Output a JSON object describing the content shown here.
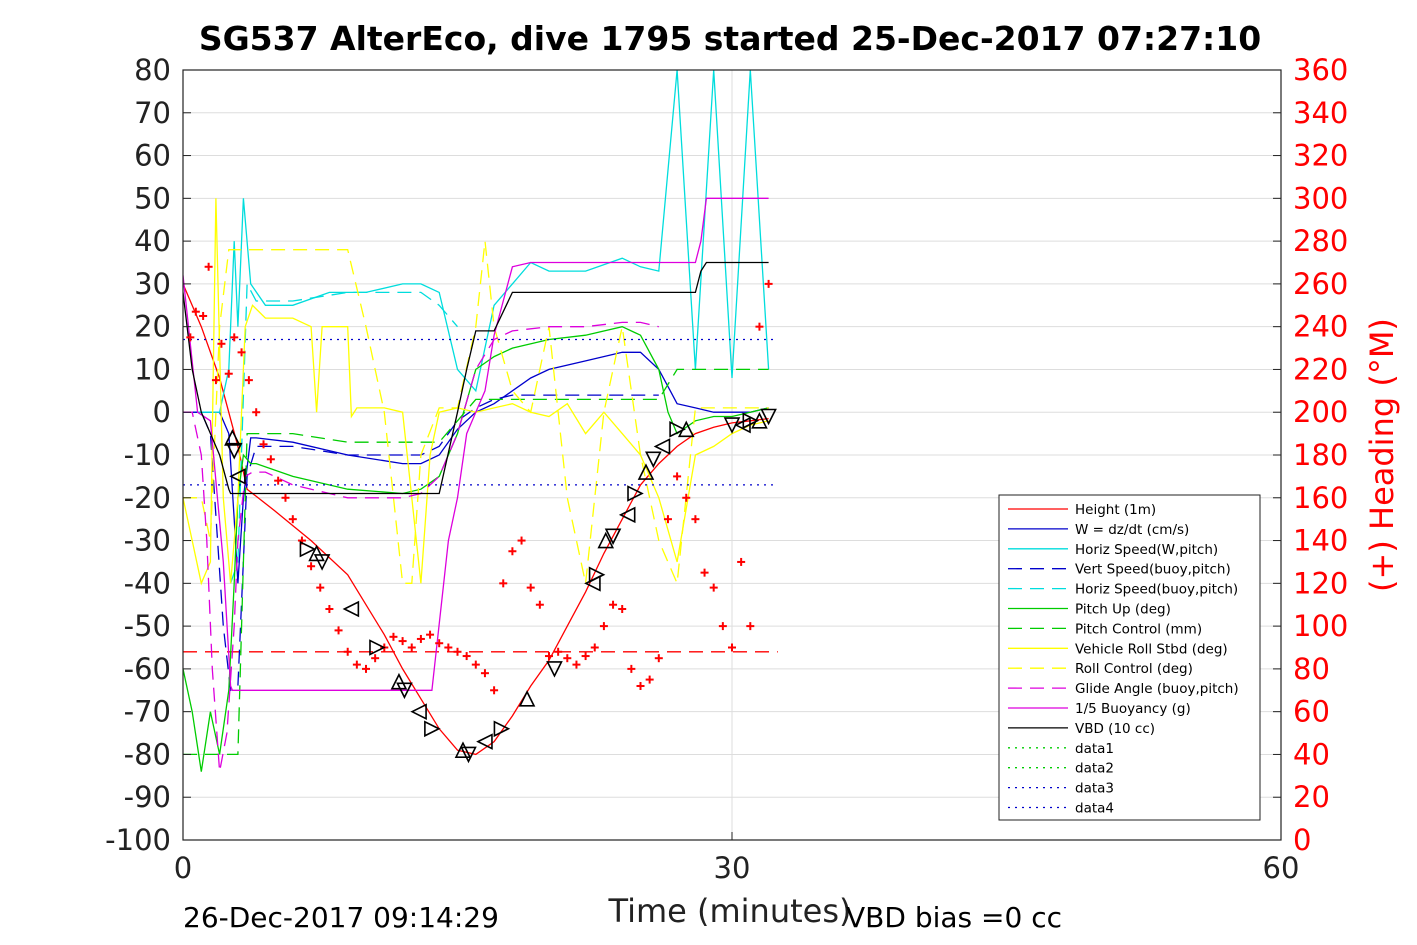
{
  "chart_data": {
    "type": "line",
    "title": "SG537 AlterEco, dive 1795 started 25-Dec-2017 07:27:10",
    "xlabel": "Time (minutes)",
    "ylabel": "",
    "y2label": "(+) Heading (°M)",
    "xlim": [
      0,
      60
    ],
    "ylim": [
      -100,
      80
    ],
    "y2lim": [
      0,
      360
    ],
    "x_ticks": [
      "0",
      "30",
      "60"
    ],
    "x_tick_values": [
      0,
      30,
      60
    ],
    "y_ticks": [
      "80",
      "70",
      "60",
      "50",
      "40",
      "30",
      "20",
      "10",
      "0",
      "-10",
      "-20",
      "-30",
      "-40",
      "-50",
      "-60",
      "-70",
      "-80",
      "-90",
      "-100"
    ],
    "y_tick_values": [
      80,
      70,
      60,
      50,
      40,
      30,
      20,
      10,
      0,
      -10,
      -20,
      -30,
      -40,
      -50,
      -60,
      -70,
      -80,
      -90,
      -100
    ],
    "y2_ticks": [
      "360",
      "340",
      "320",
      "300",
      "280",
      "260",
      "240",
      "220",
      "200",
      "180",
      "160",
      "140",
      "120",
      "100",
      "80",
      "60",
      "40",
      "20",
      "0"
    ],
    "y2_tick_values": [
      360,
      340,
      320,
      300,
      280,
      260,
      240,
      220,
      200,
      180,
      160,
      140,
      120,
      100,
      80,
      60,
      40,
      20,
      0
    ],
    "grid": true,
    "legend_position": "right",
    "footer_left": "26-Dec-2017 09:14:29",
    "footer_right": "VBD bias =0 cc",
    "series": [
      {
        "name": "Height (1m)",
        "color": "#ff0000",
        "dash": "solid",
        "x": [
          0,
          1,
          2,
          3,
          3.5,
          5,
          7,
          9,
          11,
          12,
          13,
          14,
          15,
          16,
          17,
          18,
          19,
          20,
          21,
          22,
          23,
          24,
          25,
          26,
          27,
          28,
          29,
          30,
          31,
          32
        ],
        "y": [
          30,
          20,
          8,
          -8,
          -18,
          -23,
          -30,
          -38,
          -52,
          -60,
          -67,
          -74,
          -79,
          -80,
          -77,
          -71,
          -64,
          -58,
          -50,
          -42,
          -33,
          -25,
          -17,
          -12,
          -8,
          -5,
          -3.5,
          -2.5,
          -2,
          -1.5
        ]
      },
      {
        "name": "W = dz/dt (cm/s)",
        "color": "#0000cc",
        "dash": "solid",
        "x": [
          0,
          1,
          2,
          2.5,
          2.8,
          3,
          3.3,
          3.7,
          4,
          6,
          9,
          12,
          13,
          14,
          15,
          16,
          17,
          18,
          19,
          20,
          22,
          24,
          25,
          26,
          26.5,
          27,
          28,
          29,
          30,
          31,
          32
        ],
        "y": [
          0,
          0,
          0,
          -5,
          -25,
          -40,
          -20,
          -6,
          -6,
          -7,
          -10,
          -12,
          -12,
          -10,
          -4,
          0,
          2,
          5,
          8,
          10,
          12,
          14,
          14,
          10,
          6,
          2,
          1,
          0,
          0,
          0,
          1
        ]
      },
      {
        "name": "Horiz Speed(W,pitch)",
        "color": "#00dddd",
        "dash": "solid",
        "x": [
          0,
          1,
          2,
          2.5,
          2.8,
          3,
          3.3,
          3.7,
          4.5,
          6,
          8,
          10,
          12,
          13,
          14,
          15,
          16,
          17,
          18,
          19,
          20,
          22,
          24,
          25,
          26,
          27,
          28,
          29,
          30,
          31,
          32
        ],
        "y": [
          0,
          0,
          0,
          10,
          40,
          20,
          50,
          30,
          25,
          25,
          28,
          28,
          30,
          30,
          28,
          10,
          5,
          25,
          30,
          35,
          33,
          33,
          36,
          34,
          33,
          80,
          10,
          80,
          8,
          80,
          10
        ]
      },
      {
        "name": "Vert Speed(buoy,pitch)",
        "color": "#0000cc",
        "dash": "longdash",
        "x": [
          0,
          1,
          1.5,
          2.2,
          2.6,
          3,
          3.5,
          4,
          6,
          9,
          12,
          13,
          14,
          15,
          16,
          17,
          18,
          20,
          22,
          24,
          25,
          26
        ],
        "y": [
          0,
          0,
          -5,
          -50,
          -65,
          -64,
          -15,
          -8,
          -8,
          -10,
          -10,
          -10,
          -8,
          -2,
          1,
          3,
          4,
          4,
          4,
          4,
          4,
          4
        ]
      },
      {
        "name": "Horiz Speed(buoy,pitch)",
        "color": "#00dddd",
        "dash": "longdash",
        "x": [
          2.6,
          3,
          3.5,
          4,
          6,
          9,
          12,
          13,
          14,
          15
        ],
        "y": [
          -40,
          -35,
          30,
          26,
          26,
          28,
          28,
          28,
          25,
          20
        ]
      },
      {
        "name": "Pitch Up (deg)",
        "color": "#00cc00",
        "dash": "solid",
        "x": [
          0,
          0.5,
          1,
          1.5,
          2,
          2.5,
          2.8,
          3,
          3.3,
          3.7,
          4,
          6,
          9,
          12,
          13,
          14,
          15,
          16,
          17,
          18,
          20,
          22,
          24,
          25,
          26,
          26.5,
          27,
          28,
          29,
          30,
          31,
          32
        ],
        "y": [
          -60,
          -70,
          -84,
          -70,
          -80,
          -65,
          -40,
          -20,
          -10,
          -12,
          -12,
          -15,
          -18,
          -19,
          -18,
          -15,
          -5,
          10,
          13,
          15,
          17,
          18,
          20,
          18,
          10,
          0,
          -5,
          -2,
          -1,
          -1,
          0,
          1
        ]
      },
      {
        "name": "Pitch Control (mm)",
        "color": "#00cc00",
        "dash": "longdash",
        "x": [
          0,
          1,
          2,
          2.5,
          3,
          3.5,
          4,
          6,
          9,
          12,
          13,
          14,
          15,
          16,
          17,
          18,
          20,
          22,
          24,
          25,
          26,
          27,
          28,
          29,
          30,
          31,
          32
        ],
        "y": [
          -80,
          -80,
          -80,
          -80,
          -80,
          -5,
          -5,
          -5,
          -7,
          -7,
          -7,
          -7,
          -2,
          3,
          3,
          3,
          3,
          3,
          3,
          3,
          3,
          10,
          10,
          10,
          10,
          10,
          10
        ]
      },
      {
        "name": "Vehicle Roll Stbd (deg)",
        "color": "#ffff00",
        "dash": "solid",
        "x": [
          0,
          0.5,
          1,
          1.5,
          1.8,
          2.2,
          2.6,
          3,
          3.4,
          3.8,
          4.5,
          6,
          7,
          7.3,
          7.6,
          8,
          9,
          9.2,
          9.5,
          10,
          11,
          12,
          12.5,
          13,
          13.5,
          14,
          15,
          16,
          17,
          18,
          19,
          20,
          21,
          22,
          23,
          24,
          25,
          26,
          27,
          28,
          29,
          30,
          31,
          32
        ],
        "y": [
          -20,
          -30,
          -40,
          -35,
          50,
          -20,
          -40,
          -20,
          20,
          25,
          22,
          22,
          20,
          0,
          20,
          20,
          20,
          -1,
          1,
          1,
          1,
          0,
          -20,
          -40,
          -10,
          0,
          1,
          0,
          1,
          2,
          0,
          -1,
          2,
          -5,
          0,
          -5,
          -10,
          -20,
          -35,
          -10,
          -8,
          -5,
          -3,
          -2
        ]
      },
      {
        "name": "Roll Control (deg)",
        "color": "#ffff00",
        "dash": "longdash",
        "x": [
          0,
          1,
          1.5,
          2,
          2.5,
          3,
          3.5,
          4.5,
          6,
          8,
          9,
          10,
          11,
          11.5,
          12,
          12.5,
          13,
          14,
          15,
          16,
          16.5,
          17,
          18,
          19,
          20,
          21,
          22,
          23,
          24,
          25,
          26,
          27,
          28,
          29,
          30,
          31,
          32
        ],
        "y": [
          -20,
          -20,
          -30,
          20,
          38,
          38,
          38,
          38,
          38,
          38,
          38,
          20,
          0,
          -20,
          -40,
          -40,
          -10,
          1,
          1,
          20,
          40,
          20,
          5,
          0,
          20,
          -20,
          -40,
          0,
          20,
          -10,
          -30,
          -40,
          1,
          1,
          1,
          1,
          1
        ]
      },
      {
        "name": "Glide Angle (buoy,pitch)",
        "color": "#dd00dd",
        "dash": "longdash",
        "x": [
          0,
          0.5,
          1,
          1.3,
          1.6,
          2,
          2.4,
          2.8,
          3,
          3.4,
          3.8,
          4.5,
          6,
          9,
          12,
          13,
          14,
          15,
          16,
          17,
          18,
          20,
          22,
          24,
          25,
          26
        ],
        "y": [
          0,
          0,
          -10,
          -30,
          -60,
          -84,
          -75,
          -50,
          -30,
          -15,
          -14,
          -14,
          -17,
          -20,
          -20,
          -19,
          -15,
          -5,
          10,
          17,
          19,
          20,
          20,
          21,
          21,
          20
        ]
      },
      {
        "name": "1/5 Buoyancy (g)",
        "color": "#dd00dd",
        "dash": "solid",
        "x": [
          0,
          0.8,
          1.5,
          2.2,
          2.6,
          2.7,
          6,
          10,
          13,
          13.6,
          14.5,
          15,
          15.5,
          16,
          16.5,
          17,
          18,
          19,
          20,
          22,
          25,
          27,
          28,
          28.3,
          28.6,
          30,
          31,
          32
        ],
        "y": [
          32,
          0,
          -2,
          -35,
          -64,
          -65,
          -65,
          -65,
          -65,
          -65,
          -30,
          -20,
          -5,
          0,
          5,
          18,
          34,
          35,
          35,
          35,
          35,
          35,
          35,
          40,
          50,
          50,
          50,
          50
        ]
      },
      {
        "name": "VBD (10 cc)",
        "color": "#000000",
        "dash": "solid",
        "x": [
          0,
          0.5,
          1,
          2,
          2.5,
          2.6,
          5,
          8,
          11,
          13,
          14,
          15,
          15.5,
          16,
          17,
          18,
          19,
          20,
          22,
          25,
          27,
          28,
          28.3,
          28.6,
          30,
          31,
          32
        ],
        "y": [
          28,
          10,
          0,
          -10,
          -18,
          -19,
          -19,
          -19,
          -19,
          -19,
          -19,
          0,
          10,
          19,
          19,
          28,
          28,
          28,
          28,
          28,
          28,
          28,
          33,
          35,
          35,
          35,
          35
        ]
      },
      {
        "name": "data1",
        "color": "#00cc00",
        "dash": "dotted",
        "x": [],
        "y": []
      },
      {
        "name": "data2",
        "color": "#00cc00",
        "dash": "dotted",
        "x": [],
        "y": []
      },
      {
        "name": "data3",
        "color": "#0000cc",
        "dash": "dotted",
        "x": [
          0,
          32.5
        ],
        "y": [
          17,
          17
        ]
      },
      {
        "name": "data4",
        "color": "#0000cc",
        "dash": "dotted",
        "x": [
          0,
          32.5
        ],
        "y": [
          -17,
          -17
        ]
      }
    ],
    "reference_line": {
      "color": "#ff0000",
      "dash": "longdash",
      "x": [
        0,
        32.5
      ],
      "y": [
        -56,
        -56
      ]
    },
    "heading_points": {
      "color": "#ff0000",
      "marker": "+",
      "axis": "right",
      "x": [
        0.4,
        0.7,
        1.1,
        1.4,
        1.8,
        2.1,
        2.5,
        2.8,
        3.2,
        3.6,
        4,
        4.4,
        4.8,
        5.2,
        5.6,
        6,
        6.5,
        7,
        7.5,
        8,
        8.5,
        9,
        9.5,
        10,
        10.5,
        11,
        11.5,
        12,
        12.5,
        13,
        13.5,
        14,
        14.5,
        15,
        15.5,
        16,
        16.5,
        17,
        17.5,
        18,
        18.5,
        19,
        19.5,
        20,
        20.5,
        21,
        21.5,
        22,
        22.5,
        23,
        23.5,
        24,
        24.5,
        25,
        25.5,
        26,
        26.5,
        27,
        27.5,
        28,
        28.5,
        29,
        29.5,
        30,
        30.5,
        31,
        31.5,
        32
      ],
      "y": [
        235,
        247,
        245,
        268,
        215,
        232,
        218,
        235,
        228,
        215,
        200,
        185,
        178,
        168,
        160,
        150,
        140,
        128,
        118,
        108,
        98,
        88,
        82,
        80,
        85,
        90,
        95,
        93,
        90,
        94,
        96,
        92,
        90,
        88,
        86,
        82,
        78,
        70,
        120,
        135,
        140,
        118,
        110,
        86,
        88,
        85,
        82,
        86,
        90,
        100,
        110,
        108,
        80,
        72,
        75,
        85,
        150,
        170,
        160,
        150,
        125,
        118,
        100,
        90,
        130,
        100,
        240,
        260
      ]
    },
    "waypoint_markers": {
      "color": "#000000",
      "marker": "triangle",
      "x": [
        2.7,
        2.8,
        3.0,
        6.8,
        7.3,
        7.6,
        9.2,
        10.6,
        11.8,
        12.1,
        12.9,
        13.6,
        15.3,
        15.6,
        16.5,
        17.4,
        18.8,
        20.3,
        22.4,
        22.6,
        23.1,
        23.5,
        24.3,
        24.7,
        25.3,
        25.7,
        26.2,
        27.0,
        27.5,
        30.0,
        30.6,
        31.0,
        31.5,
        32.0
      ],
      "y": [
        -6,
        -9,
        -15,
        -32,
        -33,
        -35,
        -46,
        -55,
        -63,
        -65,
        -70,
        -74,
        -79,
        -80,
        -77,
        -74,
        -67,
        -60,
        -40,
        -38,
        -30,
        -29,
        -24,
        -19,
        -14,
        -11,
        -8,
        -4,
        -4,
        -3,
        -3,
        -2,
        -2,
        -1
      ]
    }
  }
}
